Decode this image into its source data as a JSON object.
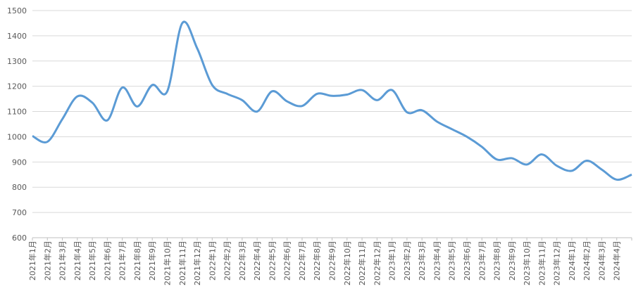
{
  "chart_data": {
    "type": "line",
    "categories": [
      "2021年1月",
      "2021年2月",
      "2021年3月",
      "2021年4月",
      "2021年5月",
      "2021年6月",
      "2021年7月",
      "2021年8月",
      "2021年9月",
      "2021年10月",
      "2021年11月",
      "2021年12月",
      "2022年1月",
      "2022年2月",
      "2022年3月",
      "2022年4月",
      "2022年5月",
      "2022年6月",
      "2022年7月",
      "2022年8月",
      "2022年9月",
      "2022年10月",
      "2022年11月",
      "2022年12月",
      "2023年1月",
      "2023年2月",
      "2023年3月",
      "2023年4月",
      "2023年5月",
      "2023年6月",
      "2023年7月",
      "2023年8月",
      "2023年9月",
      "2023年10月",
      "2023年11月",
      "2023年12月",
      "2024年1月",
      "2024年2月",
      "2024年3月",
      "2024年4月",
      null
    ],
    "values": [
      1003,
      980,
      1070,
      1160,
      1135,
      1065,
      1195,
      1120,
      1205,
      1180,
      1450,
      1350,
      1205,
      1170,
      1145,
      1100,
      1180,
      1140,
      1122,
      1170,
      1162,
      1167,
      1185,
      1145,
      1185,
      1097,
      1105,
      1060,
      1030,
      1000,
      960,
      910,
      915,
      890,
      930,
      885,
      865,
      905,
      870,
      830,
      850
    ],
    "color": "#5b9bd5",
    "ylim": [
      600,
      1500
    ],
    "yticks": [
      600,
      700,
      800,
      900,
      1000,
      1100,
      1200,
      1300,
      1400,
      1500
    ],
    "grid": true
  }
}
